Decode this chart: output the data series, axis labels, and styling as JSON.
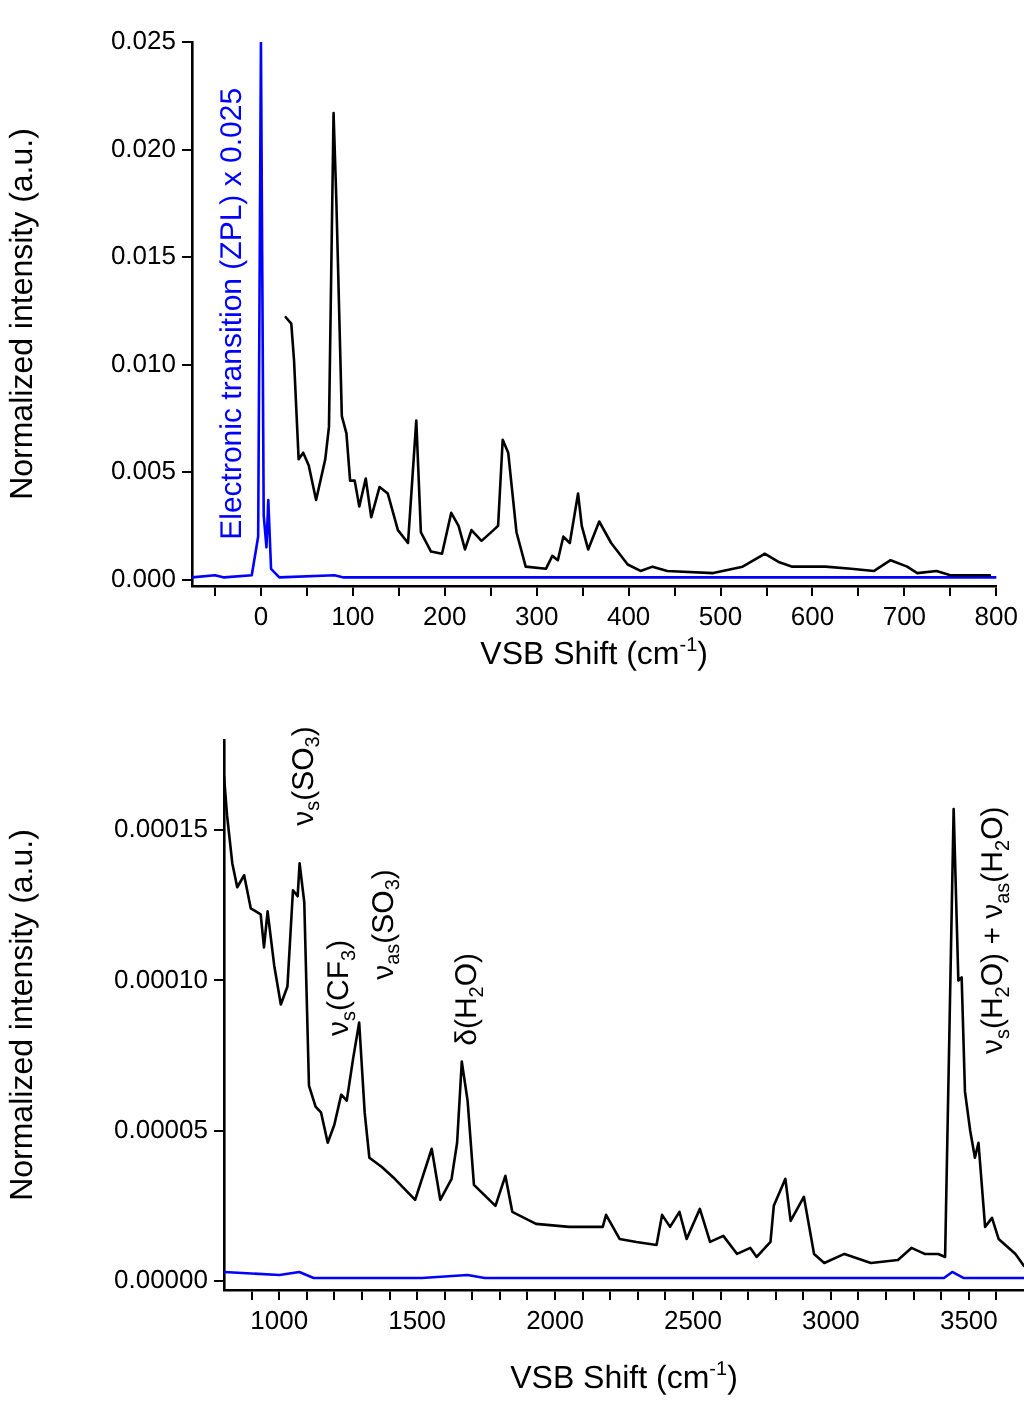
{
  "chart_data": [
    {
      "type": "line",
      "xlabel": "VSB Shift (cm$^{-1}$)",
      "ylabel": "Normalized intensity (a.u.)",
      "xlim": [
        -75,
        800
      ],
      "ylim": [
        -0.0003,
        0.025
      ],
      "xticks": [
        {
          "value": -50,
          "label": null
        },
        0,
        {
          "value": 50,
          "label": null
        },
        100,
        {
          "value": 150,
          "label": null
        },
        200,
        {
          "value": 250,
          "label": null
        },
        300,
        {
          "value": 350,
          "label": null
        },
        400,
        {
          "value": 450,
          "label": null
        },
        500,
        {
          "value": 550,
          "label": null
        },
        600,
        {
          "value": 650,
          "label": null
        },
        700,
        {
          "value": 750,
          "label": null
        },
        800
      ],
      "yticks": [
        {
          "value": 0,
          "label": "0.000"
        },
        {
          "value": 0.005,
          "label": "0.005"
        },
        {
          "value": 0.01,
          "label": "0.010"
        },
        {
          "value": 0.015,
          "label": "0.015"
        },
        {
          "value": 0.02,
          "label": "0.020"
        },
        {
          "value": 0.025,
          "label": "0.025"
        }
      ],
      "grid": false,
      "legend": false,
      "marker": "none",
      "line_style": "solid",
      "annotations": [
        "Electronic transition (ZPL) x 0.025"
      ],
      "series": [
        {
          "color": "#000000",
          "x": [
            27,
            33,
            36,
            41,
            46,
            52,
            60,
            70,
            74,
            79,
            82,
            88,
            93,
            97,
            102,
            107,
            114,
            120,
            129,
            138,
            149,
            160,
            169,
            174,
            185,
            197,
            207,
            215,
            222,
            229,
            240,
            253,
            258,
            263,
            269,
            278,
            288,
            310,
            317,
            323,
            329,
            336,
            345,
            349,
            356,
            368,
            381,
            399,
            413,
            426,
            442,
            492,
            524,
            548,
            564,
            578,
            614,
            642,
            667,
            685,
            703,
            714,
            735,
            750,
            793
          ],
          "values": [
            0.0122,
            0.0119,
            0.0102,
            0.0056,
            0.0059,
            0.0053,
            0.0037,
            0.0056,
            0.0071,
            0.0217,
            0.0177,
            0.0076,
            0.0068,
            0.0046,
            0.0046,
            0.0034,
            0.0047,
            0.0029,
            0.0043,
            0.004,
            0.0023,
            0.0017,
            0.0074,
            0.0022,
            0.0013,
            0.0012,
            0.0031,
            0.0025,
            0.0014,
            0.0023,
            0.0018,
            0.0023,
            0.0025,
            0.0065,
            0.0059,
            0.0022,
            0.0006,
            0.0005,
            0.0011,
            0.0009,
            0.002,
            0.0017,
            0.004,
            0.0025,
            0.0014,
            0.0027,
            0.0017,
            0.0007,
            0.0004,
            0.0006,
            0.0004,
            0.0003,
            0.0006,
            0.0012,
            0.0008,
            0.0006,
            0.0006,
            0.0005,
            0.0004,
            0.0009,
            0.0006,
            0.0003,
            0.0004,
            0.0002,
            0.0002
          ]
        },
        {
          "color": "#0000ff",
          "x": [
            -75,
            -50,
            -40,
            -10,
            -3,
            0,
            3,
            6,
            8,
            11,
            20,
            80,
            90,
            800
          ],
          "values": [
            0.0001,
            0.0002,
            0.0001,
            0.0002,
            0.002,
            0.025,
            0.003,
            0.0015,
            0.0037,
            0.0005,
            0.0001,
            0.0002,
            0.0001,
            0.0001
          ]
        }
      ]
    },
    {
      "type": "line",
      "xlabel": "VSB Shift (cm$^{-1}$)",
      "ylabel": "Normalized intensity (a.u.)",
      "xlim": [
        800,
        3700
      ],
      "ylim": [
        -3e-06,
        0.00018
      ],
      "xticks": [
        {
          "value": 900,
          "label": null
        },
        1000,
        {
          "value": 1100,
          "label": null
        },
        {
          "value": 1200,
          "label": null
        },
        {
          "value": 1300,
          "label": null
        },
        {
          "value": 1400,
          "label": null
        },
        1500,
        {
          "value": 1600,
          "label": null
        },
        {
          "value": 1700,
          "label": null
        },
        {
          "value": 1800,
          "label": null
        },
        {
          "value": 1900,
          "label": null
        },
        2000,
        {
          "value": 2100,
          "label": null
        },
        {
          "value": 2200,
          "label": null
        },
        {
          "value": 2300,
          "label": null
        },
        {
          "value": 2400,
          "label": null
        },
        2500,
        {
          "value": 2600,
          "label": null
        },
        {
          "value": 2700,
          "label": null
        },
        {
          "value": 2800,
          "label": null
        },
        {
          "value": 2900,
          "label": null
        },
        3000,
        {
          "value": 3100,
          "label": null
        },
        {
          "value": 3200,
          "label": null
        },
        {
          "value": 3300,
          "label": null
        },
        {
          "value": 3400,
          "label": null
        },
        3500,
        {
          "value": 3600,
          "label": null
        }
      ],
      "yticks": [
        {
          "value": 0,
          "label": "0.00000"
        },
        {
          "value": 5e-05,
          "label": "0.00005"
        },
        {
          "value": 0.0001,
          "label": "0.00010"
        },
        {
          "value": 0.00015,
          "label": "0.00015"
        }
      ],
      "grid": false,
      "legend": false,
      "marker": "none",
      "line_style": "solid",
      "annotations": [
        "ν$_{s}$(SO$_{3}$)",
        "ν$_{s}$(CF$_{3}$)",
        "ν$_{as}$(SO$_{3}$)",
        "δ(H$_{2}$O)",
        "ν$_{s}$(H$_{2}$O) + ν$_{as}$(H$_{2}$O)"
      ],
      "series": [
        {
          "color": "#000000",
          "x": [
            800,
            811,
            830,
            848,
            873,
            897,
            933,
            945,
            958,
            982,
            1006,
            1030,
            1050,
            1067,
            1074,
            1091,
            1108,
            1132,
            1152,
            1176,
            1200,
            1225,
            1245,
            1268,
            1290,
            1310,
            1327,
            1371,
            1419,
            1493,
            1553,
            1584,
            1625,
            1645,
            1662,
            1683,
            1706,
            1784,
            1820,
            1845,
            1931,
            2051,
            2075,
            2173,
            2185,
            2234,
            2295,
            2368,
            2388,
            2417,
            2451,
            2477,
            2525,
            2562,
            2610,
            2660,
            2708,
            2731,
            2781,
            2793,
            2835,
            2854,
            2902,
            2939,
            2976,
            3049,
            3145,
            3243,
            3292,
            3340,
            3389,
            3414,
            3445,
            3462,
            3474,
            3486,
            3505,
            3522,
            3535,
            3559,
            3584,
            3608,
            3669,
            3700
          ],
          "values": [
            0.000168,
            0.000155,
            0.000139,
            0.000131,
            0.000135,
            0.000124,
            0.000122,
            0.000111,
            0.000123,
            0.000105,
            9.2e-05,
            9.8e-05,
            0.00013,
            0.000128,
            0.000139,
            0.000126,
            6.5e-05,
            5.8e-05,
            5.6e-05,
            4.6e-05,
            5.2e-05,
            6.2e-05,
            6e-05,
            7.4e-05,
            8.6e-05,
            5.6e-05,
            4.1e-05,
            3.8e-05,
            3.4e-05,
            2.7e-05,
            4.4e-05,
            2.7e-05,
            3.4e-05,
            4.6e-05,
            7.3e-05,
            6e-05,
            3.2e-05,
            2.5e-05,
            3.5e-05,
            2.3e-05,
            1.9e-05,
            1.8e-05,
            1.8e-05,
            1.8e-05,
            2.2e-05,
            1.4e-05,
            1.3e-05,
            1.2e-05,
            2.2e-05,
            1.8e-05,
            2.3e-05,
            1.4e-05,
            2.4e-05,
            1.3e-05,
            1.5e-05,
            9e-06,
            1.1e-05,
            8e-06,
            1.3e-05,
            2.5e-05,
            3.4e-05,
            2e-05,
            2.8e-05,
            9e-06,
            6e-06,
            9e-06,
            6e-06,
            7e-06,
            1.1e-05,
            9e-06,
            9e-06,
            8e-06,
            0.000157,
            0.0001,
            0.000101,
            6.3e-05,
            5e-05,
            4.1e-05,
            4.6e-05,
            1.8e-05,
            2.1e-05,
            1.4e-05,
            9e-06,
            5e-06
          ]
        },
        {
          "color": "#0000ff",
          "x": [
            800,
            1001,
            1073,
            1125,
            1311,
            1517,
            1683,
            1745,
            2550,
            3410,
            3440,
            3480,
            3700
          ],
          "values": [
            3e-06,
            2e-06,
            3e-06,
            1e-06,
            1e-06,
            1e-06,
            2e-06,
            1e-06,
            1e-06,
            1e-06,
            3e-06,
            1e-06,
            1e-06
          ]
        }
      ]
    }
  ]
}
